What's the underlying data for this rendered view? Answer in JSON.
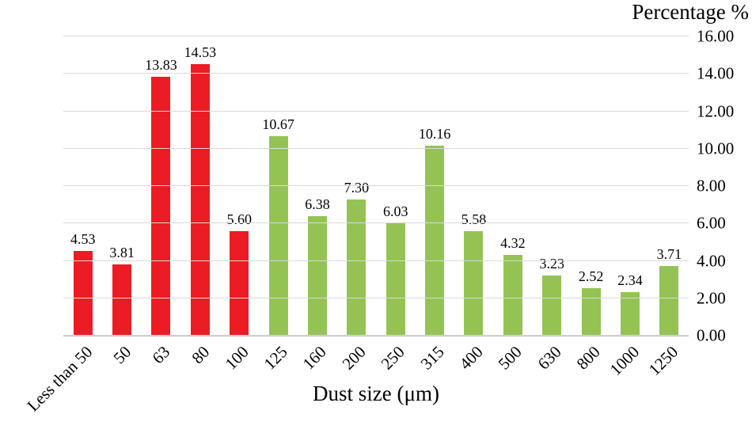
{
  "chart_data": {
    "type": "bar",
    "title": "",
    "ylabel": "Percentage %",
    "xlabel": "Dust size (μm)",
    "categories": [
      "Less than 50",
      "50",
      "63",
      "80",
      "100",
      "125",
      "160",
      "200",
      "250",
      "315",
      "400",
      "500",
      "630",
      "800",
      "1000",
      "1250"
    ],
    "values": [
      4.53,
      3.81,
      13.83,
      14.53,
      5.6,
      10.67,
      6.38,
      7.3,
      6.03,
      10.16,
      5.58,
      4.32,
      3.23,
      2.52,
      2.34,
      3.71
    ],
    "value_labels": [
      "4.53",
      "3.81",
      "13.83",
      "14.53",
      "5.60",
      "10.67",
      "6.38",
      "7.30",
      "6.03",
      "10.16",
      "5.58",
      "4.32",
      "3.23",
      "2.52",
      "2.34",
      "3.71"
    ],
    "bar_colors": [
      "#ec1c24",
      "#ec1c24",
      "#ec1c24",
      "#ec1c24",
      "#ec1c24",
      "#94c354",
      "#94c354",
      "#94c354",
      "#94c354",
      "#94c354",
      "#94c354",
      "#94c354",
      "#94c354",
      "#94c354",
      "#94c354",
      "#94c354"
    ],
    "ylim": [
      0,
      16
    ],
    "ytick_step": 2,
    "ytick_labels": [
      "0.00",
      "2.00",
      "4.00",
      "6.00",
      "8.00",
      "10.00",
      "12.00",
      "14.00",
      "16.00"
    ],
    "grid": true,
    "legend": "none",
    "grid_color": "#d9d9d9",
    "axis_color": "#bfbfbf"
  }
}
